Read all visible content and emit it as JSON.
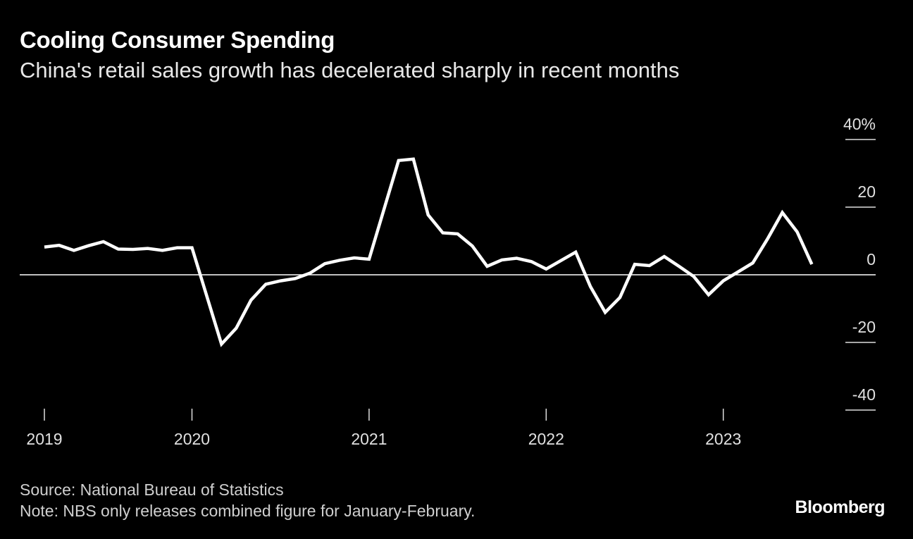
{
  "chart_data": {
    "type": "line",
    "title": "Cooling Consumer Spending",
    "subtitle": "China's retail sales growth has decelerated sharply in recent months",
    "y_ticks": [
      40,
      20,
      0,
      -20,
      -40
    ],
    "y_tick_labels": [
      "40%",
      "20",
      "0",
      "-20",
      "-40"
    ],
    "ylim": [
      -40,
      40
    ],
    "x_ticks": [
      "2019",
      "2020",
      "2021",
      "2022",
      "2023"
    ],
    "y_axis_position": "right",
    "grid": false,
    "line_color": "#ffffff",
    "background": "#000000",
    "dates": [
      "2019-02",
      "2019-03",
      "2019-04",
      "2019-05",
      "2019-06",
      "2019-07",
      "2019-08",
      "2019-09",
      "2019-10",
      "2019-11",
      "2019-12",
      "2020-02",
      "2020-03",
      "2020-04",
      "2020-05",
      "2020-06",
      "2020-07",
      "2020-08",
      "2020-09",
      "2020-10",
      "2020-11",
      "2020-12",
      "2021-02",
      "2021-03",
      "2021-04",
      "2021-05",
      "2021-06",
      "2021-07",
      "2021-08",
      "2021-09",
      "2021-10",
      "2021-11",
      "2021-12",
      "2022-02",
      "2022-03",
      "2022-04",
      "2022-05",
      "2022-06",
      "2022-07",
      "2022-08",
      "2022-09",
      "2022-10",
      "2022-11",
      "2022-12",
      "2023-02",
      "2023-03",
      "2023-04",
      "2023-05",
      "2023-06"
    ],
    "values": [
      8.2,
      8.7,
      7.2,
      8.6,
      9.8,
      7.6,
      7.5,
      7.8,
      7.2,
      8.0,
      8.0,
      -20.5,
      -15.8,
      -7.5,
      -2.8,
      -1.8,
      -1.1,
      0.5,
      3.3,
      4.3,
      5.0,
      4.6,
      33.8,
      34.2,
      17.7,
      12.4,
      12.1,
      8.5,
      2.5,
      4.4,
      4.9,
      3.9,
      1.7,
      6.7,
      -3.5,
      -11.1,
      -6.7,
      3.1,
      2.7,
      5.4,
      2.5,
      -0.5,
      -5.9,
      -1.8,
      3.5,
      10.6,
      18.4,
      12.7,
      3.1
    ]
  },
  "footer": {
    "source": "Source: National Bureau of Statistics",
    "note": "Note: NBS only releases combined figure for January-February.",
    "logo": "Bloomberg"
  }
}
